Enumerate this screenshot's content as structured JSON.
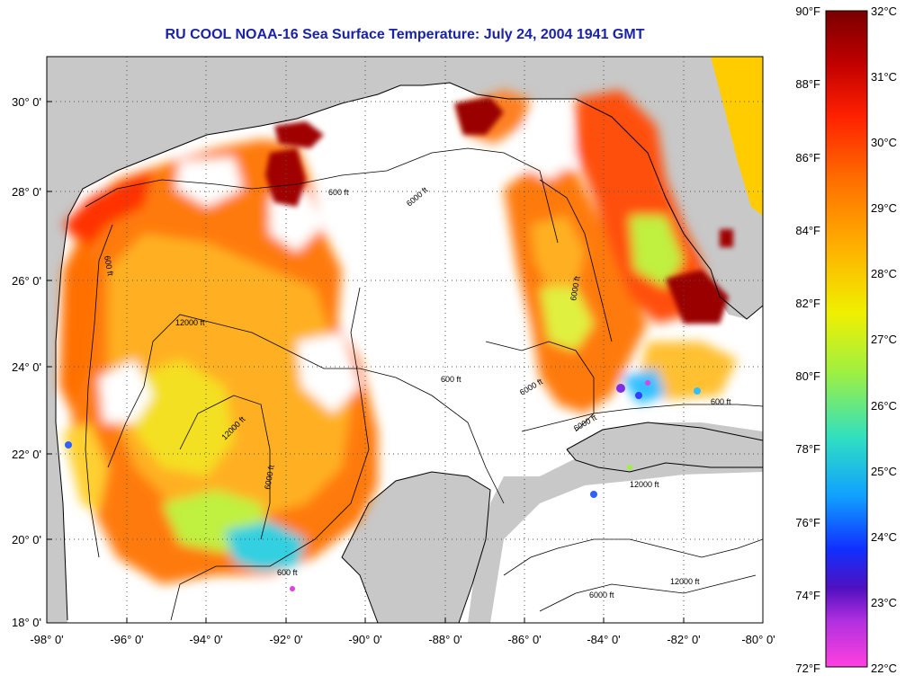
{
  "title": "RU COOL  NOAA-16  Sea Surface Temperature:  July 24, 2004 1941 GMT",
  "map": {
    "lat_labels": [
      "30° 0'",
      "28° 0'",
      "26° 0'",
      "24° 0'",
      "22° 0'",
      "20° 0'",
      "18° 0'"
    ],
    "lon_labels": [
      "-98° 0'",
      "-96° 0'",
      "-94° 0'",
      "-92° 0'",
      "-90° 0'",
      "-88° 0'",
      "-86° 0'",
      "-84° 0'",
      "-82° 0'",
      "-80° 0'"
    ],
    "contour_labels": [
      "600 ft",
      "6000 ft",
      "12000 ft"
    ],
    "land_color": "#c8c8c8",
    "cloud_color": "#ffffff"
  },
  "colorbar": {
    "fahrenheit_labels": [
      "90°F",
      "88°F",
      "86°F",
      "84°F",
      "82°F",
      "80°F",
      "78°F",
      "76°F",
      "74°F",
      "72°F"
    ],
    "celsius_labels": [
      "32°C",
      "31°C",
      "30°C",
      "29°C",
      "28°C",
      "27°C",
      "26°C",
      "25°C",
      "24°C",
      "23°C",
      "22°C"
    ],
    "gradient_colors": [
      "#7a0000",
      "#c00000",
      "#ff2000",
      "#ff7000",
      "#ffb000",
      "#f0f000",
      "#a0f040",
      "#30e0c0",
      "#10a0ff",
      "#1030ff",
      "#5010c0",
      "#b030e0",
      "#ff40e0"
    ]
  }
}
